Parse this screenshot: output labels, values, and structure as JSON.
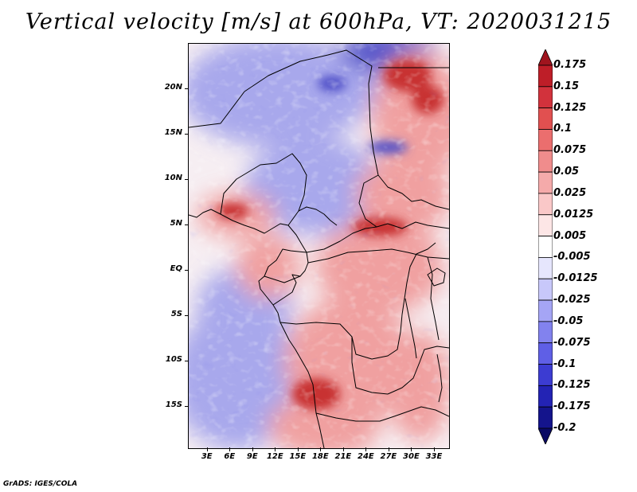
{
  "title": "Vertical velocity [m/s] at 600hPa, VT: 2020031215",
  "footer": "GrADS: IGES/COLA",
  "axes": {
    "lat_labels": [
      "20N",
      "15N",
      "10N",
      "5N",
      "EQ",
      "5S",
      "10S",
      "15S"
    ],
    "lat_values": [
      20,
      15,
      10,
      5,
      0,
      -5,
      -10,
      -15
    ],
    "lon_labels": [
      "3E",
      "6E",
      "9E",
      "12E",
      "15E",
      "18E",
      "21E",
      "24E",
      "27E",
      "30E",
      "33E"
    ],
    "lon_values": [
      3,
      6,
      9,
      12,
      15,
      18,
      21,
      24,
      27,
      30,
      33
    ],
    "lat_range": [
      -19.6,
      25
    ],
    "lon_range": [
      0.5,
      34.9
    ]
  },
  "colorbar": {
    "labels": [
      "0.175",
      "0.15",
      "0.125",
      "0.1",
      "0.075",
      "0.05",
      "0.025",
      "0.0125",
      "0.005",
      "-0.005",
      "-0.0125",
      "-0.025",
      "-0.05",
      "-0.075",
      "-0.1",
      "-0.125",
      "-0.175",
      "-0.2"
    ],
    "colors": [
      "#a0141e",
      "#be1e28",
      "#d2323c",
      "#e15050",
      "#eb6e6e",
      "#f08c8c",
      "#f5aaaa",
      "#fac8c8",
      "#fde6e6",
      "#ffffff",
      "#e6e6fd",
      "#c8c8fa",
      "#a5a5f5",
      "#8282ee",
      "#5f5fe6",
      "#3c3cd2",
      "#2323b4",
      "#14148c",
      "#0a0a64"
    ]
  },
  "field_colors": {
    "strong_up": "#c83232",
    "up": "#f0a0a0",
    "neutral": "#f6eef2",
    "down": "#a8a8ec",
    "strong_down": "#5050c8"
  }
}
